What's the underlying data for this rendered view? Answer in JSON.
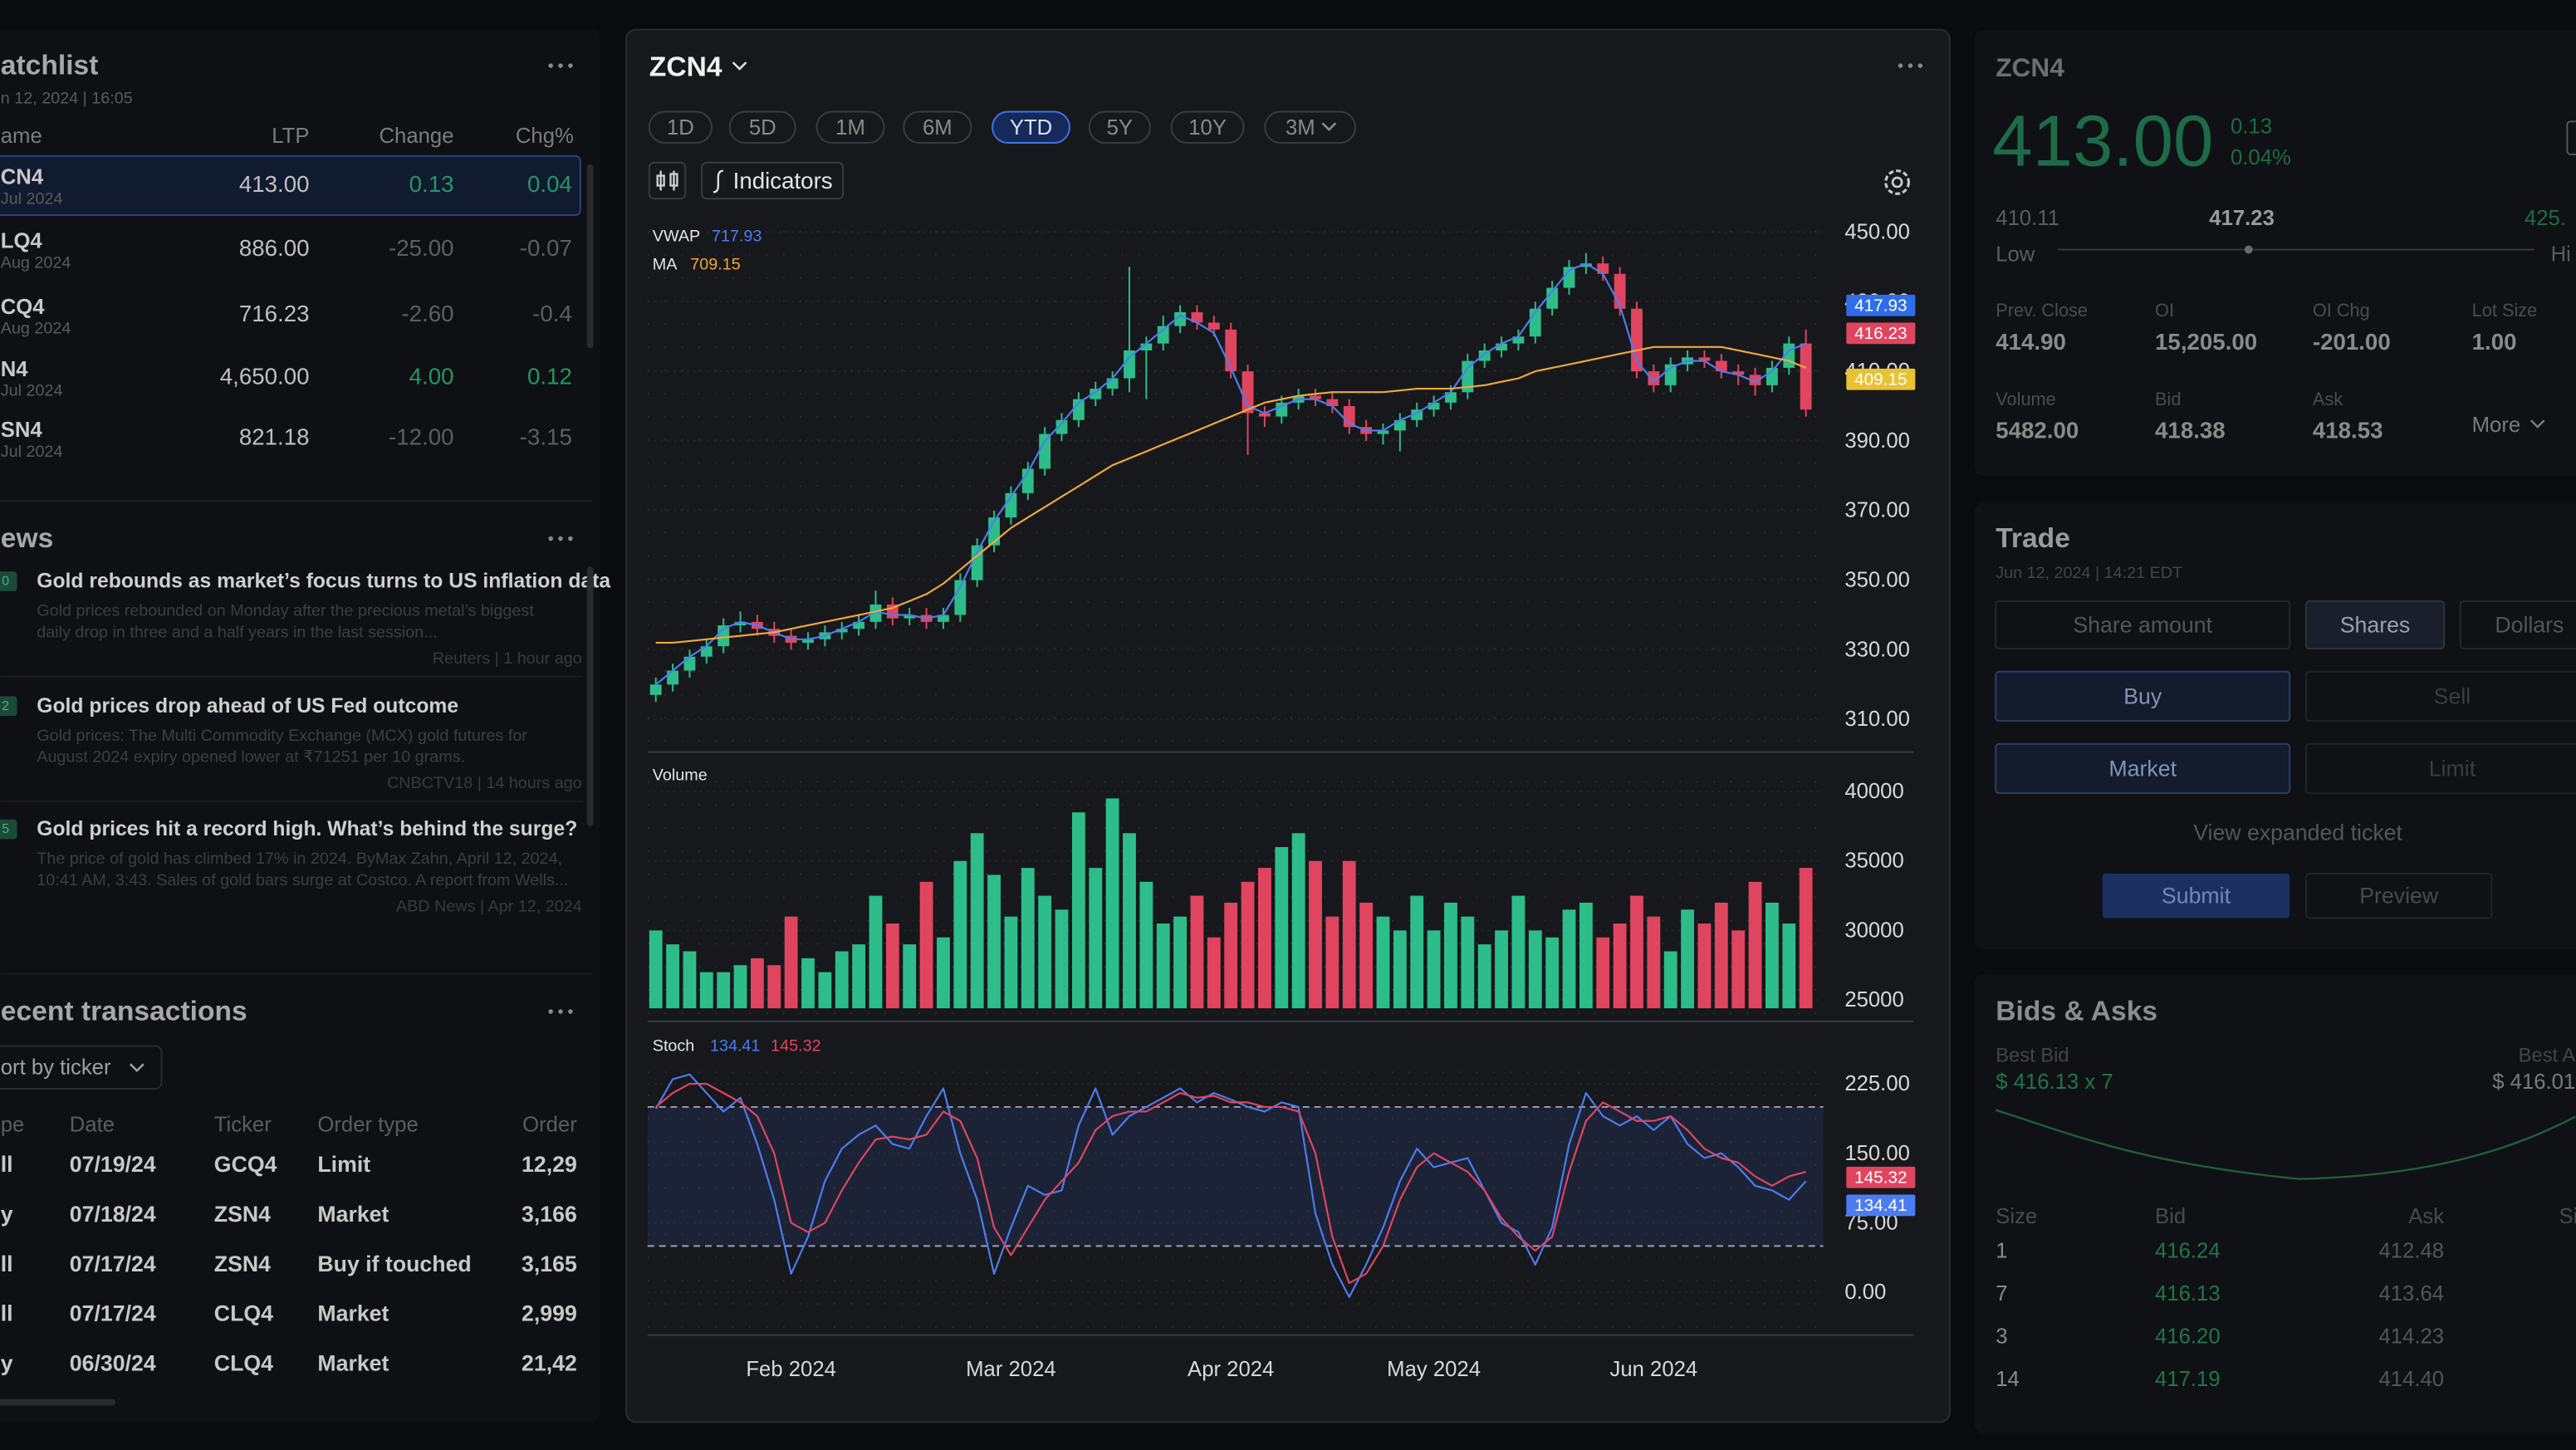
{
  "watchlist": {
    "title": "atchlist",
    "date": "n 12, 2024 | 16:05",
    "columns": [
      "ame",
      "LTP",
      "Change",
      "Chg%"
    ],
    "rows": [
      {
        "symbol": "CN4",
        "expiry": "Jul 2024",
        "ltp": "413.00",
        "change": "0.13",
        "pct": "0.04"
      },
      {
        "symbol": "LQ4",
        "expiry": "Aug 2024",
        "ltp": "886.00",
        "change": "-25.00",
        "pct": "-0.07"
      },
      {
        "symbol": "CQ4",
        "expiry": "Aug 2024",
        "ltp": "716.23",
        "change": "-2.60",
        "pct": "-0.4"
      },
      {
        "symbol": "N4",
        "expiry": "Jul 2024",
        "ltp": "4,650.00",
        "change": "4.00",
        "pct": "0.12"
      },
      {
        "symbol": "SN4",
        "expiry": "Jul 2024",
        "ltp": "821.18",
        "change": "-12.00",
        "pct": "-3.15"
      }
    ]
  },
  "news": {
    "title": "ews",
    "items": [
      {
        "tag": "0",
        "headline": "Gold rebounds as market’s focus turns to US inflation data",
        "body": [
          "Gold prices rebounded on Monday after the precious metal’s biggest",
          "daily drop in three and a half years in the last session..."
        ],
        "source": "Reuters | 1 hour ago"
      },
      {
        "tag": "2",
        "headline": "Gold prices drop ahead of US Fed outcome",
        "body": [
          "Gold prices: The Multi Commodity Exchange (MCX) gold futures for",
          "August 2024 expiry opened lower at ₹71251 per 10 grams."
        ],
        "source": "CNBCTV18 | 14 hours ago"
      },
      {
        "tag": "5",
        "headline": "Gold prices hit a record high. What’s behind the surge?",
        "body": [
          "The price of gold has climbed 17% in 2024. ByMax Zahn, April 12, 2024,",
          "10:41 AM, 3:43. Sales of gold bars surge at Costco. A report from Wells..."
        ],
        "source": "ABD News | Apr 12, 2024"
      }
    ]
  },
  "transactions": {
    "title": "ecent transactions",
    "filter": "ort by ticker",
    "columns": [
      "pe",
      "Date",
      "Ticker",
      "Order type",
      "Order"
    ],
    "rows": [
      [
        "ll",
        "07/19/24",
        "GCQ4",
        "Limit",
        "12,29"
      ],
      [
        "y",
        "07/18/24",
        "ZSN4",
        "Market",
        "3,166"
      ],
      [
        "ll",
        "07/17/24",
        "ZSN4",
        "Buy if touched",
        "3,165"
      ],
      [
        "ll",
        "07/17/24",
        "CLQ4",
        "Market",
        "2,999"
      ],
      [
        "y",
        "06/30/24",
        "CLQ4",
        "Market",
        "21,42"
      ]
    ]
  },
  "chart": {
    "symbol": "ZCN4",
    "ranges": [
      "1D",
      "5D",
      "1M",
      "6M",
      "YTD",
      "5Y",
      "10Y",
      "3M"
    ],
    "indicators": "Indicators",
    "categories": [
      null,
      null,
      null,
      null,
      null,
      null,
      null,
      null,
      "Feb 2024",
      null,
      null,
      null,
      null,
      null,
      null,
      null,
      null,
      null,
      null,
      null,
      null,
      "Mar 2024",
      null,
      null,
      null,
      null,
      null,
      null,
      null,
      null,
      null,
      null,
      null,
      null,
      "Apr 2024",
      null,
      null,
      null,
      null,
      null,
      null,
      null,
      null,
      null,
      null,
      null,
      "May 2024",
      null,
      null,
      null,
      null,
      null,
      null,
      null,
      null,
      null,
      null,
      null,
      null,
      "Jun 2024",
      null,
      null,
      null,
      null,
      null,
      null,
      null,
      null,
      null
    ],
    "price": {
      "ylim": [
        302,
        453
      ],
      "yticks": [
        {
          "value": 310,
          "label": "310.00"
        },
        {
          "value": 330,
          "label": "330.00"
        },
        {
          "value": 350,
          "label": "350.00"
        },
        {
          "value": 370,
          "label": "370.00"
        },
        {
          "value": 390,
          "label": "390.00"
        },
        {
          "value": 410,
          "label": "410.00"
        },
        {
          "value": 430,
          "label": "430.00"
        },
        {
          "value": 450,
          "label": "450.00"
        }
      ],
      "up_color": "#2dbd8b",
      "down_color": "#e0455f",
      "open": [
        317,
        320,
        324,
        328,
        331,
        337,
        338,
        336,
        334,
        332,
        333,
        335,
        336,
        338,
        343,
        339,
        340,
        338,
        340,
        350,
        360,
        368,
        375,
        382,
        392,
        396,
        402,
        405,
        408,
        416,
        418,
        423,
        427,
        424,
        422,
        410,
        398,
        397,
        401,
        403,
        402,
        400,
        394,
        392,
        393,
        396,
        399,
        401,
        404,
        413,
        416,
        418,
        420,
        428,
        434,
        440,
        441,
        438,
        428,
        410,
        406,
        412,
        414,
        413,
        410,
        409,
        406,
        411,
        418
      ],
      "high": [
        322,
        326,
        330,
        333,
        339,
        341,
        340,
        338,
        336,
        335,
        337,
        338,
        340,
        347,
        345,
        342,
        342,
        342,
        352,
        362,
        370,
        377,
        384,
        394,
        398,
        404,
        407,
        410,
        440,
        420,
        426,
        429,
        429,
        426,
        424,
        412,
        400,
        403,
        405,
        405,
        404,
        402,
        396,
        395,
        398,
        401,
        403,
        406,
        415,
        418,
        420,
        422,
        430,
        436,
        442,
        444,
        443,
        440,
        430,
        412,
        414,
        416,
        416,
        415,
        412,
        411,
        413,
        420,
        422
      ],
      "low": [
        315,
        318,
        322,
        326,
        329,
        335,
        334,
        332,
        330,
        330,
        331,
        333,
        334,
        336,
        337,
        337,
        336,
        336,
        338,
        348,
        358,
        366,
        373,
        380,
        390,
        394,
        400,
        403,
        404,
        402,
        416,
        421,
        422,
        420,
        408,
        386,
        394,
        395,
        399,
        400,
        398,
        392,
        390,
        389,
        387,
        394,
        397,
        399,
        402,
        411,
        414,
        416,
        418,
        426,
        432,
        438,
        436,
        426,
        408,
        404,
        404,
        410,
        411,
        408,
        406,
        403,
        404,
        409,
        397
      ],
      "close": [
        320,
        324,
        328,
        331,
        337,
        338,
        336,
        334,
        332,
        333,
        335,
        336,
        338,
        343,
        339,
        340,
        338,
        340,
        350,
        360,
        368,
        375,
        382,
        392,
        396,
        402,
        405,
        408,
        416,
        418,
        423,
        427,
        424,
        422,
        410,
        398,
        397,
        401,
        403,
        402,
        400,
        394,
        392,
        393,
        396,
        399,
        401,
        404,
        413,
        416,
        418,
        420,
        428,
        434,
        440,
        441,
        438,
        428,
        410,
        406,
        412,
        414,
        413,
        410,
        409,
        406,
        411,
        418,
        399
      ],
      "overlays": [
        {
          "name": "VWAP",
          "value_label": "717.93",
          "color": "#4d7cf0",
          "values": [
            320,
            324,
            328,
            331,
            336,
            338,
            337,
            335,
            333,
            333,
            334,
            336,
            338,
            341,
            340,
            340,
            339,
            340,
            348,
            358,
            367,
            374,
            381,
            390,
            395,
            401,
            404,
            408,
            414,
            418,
            422,
            426,
            424,
            421,
            411,
            400,
            398,
            400,
            402,
            402,
            400,
            395,
            393,
            393,
            396,
            398,
            401,
            404,
            411,
            415,
            418,
            420,
            427,
            433,
            439,
            441,
            438,
            429,
            413,
            407,
            411,
            413,
            413,
            410,
            409,
            407,
            410,
            416,
            418
          ]
        },
        {
          "name": "MA",
          "value_label": "709.15",
          "color": "#f0a83c",
          "values": [
            332,
            332,
            332.5,
            333,
            333.5,
            334,
            334.5,
            335,
            336,
            337,
            338,
            339,
            340,
            341,
            342,
            344,
            346,
            349,
            353,
            357,
            361,
            365,
            368,
            371,
            374,
            377,
            380,
            383,
            385,
            387,
            389,
            391,
            393,
            395,
            397,
            399,
            401,
            402,
            403,
            403.5,
            404,
            404,
            404,
            404,
            404.5,
            405,
            405,
            405,
            405.5,
            406,
            407,
            408,
            410,
            411,
            412,
            413,
            414,
            415,
            416,
            417,
            417,
            417,
            417,
            417,
            416,
            415,
            414,
            413,
            411
          ]
        }
      ],
      "badges": [
        {
          "label": "417.93",
          "color": "#2f6ee8"
        },
        {
          "label": "416.23",
          "color": "#e0455f"
        },
        {
          "label": "409.15",
          "color": "#e8c235"
        }
      ]
    },
    "volume": {
      "name": "Volume",
      "ylim": [
        24400,
        40000
      ],
      "yticks": [
        25000,
        30000,
        35000,
        40000
      ],
      "values": [
        30000,
        29000,
        28500,
        27000,
        27000,
        27500,
        28000,
        27500,
        31000,
        28000,
        27000,
        28500,
        29000,
        32500,
        30500,
        29000,
        33500,
        29500,
        35000,
        37000,
        34000,
        31000,
        34500,
        32500,
        31500,
        38500,
        34500,
        39500,
        37000,
        33500,
        30500,
        31000,
        32500,
        29500,
        32000,
        33500,
        34500,
        36000,
        37000,
        35000,
        31000,
        35000,
        32000,
        31000,
        30000,
        32500,
        30000,
        32000,
        31000,
        29000,
        30000,
        32500,
        30000,
        29500,
        31500,
        32000,
        29500,
        30500,
        32500,
        31000,
        28500,
        31500,
        30500,
        32000,
        30000,
        33500,
        32000,
        30500,
        34500
      ]
    },
    "stoch": {
      "name": "Stoch",
      "ylim": [
        -40,
        248
      ],
      "bands": [
        50,
        200
      ],
      "yticks": [
        {
          "value": 0,
          "label": "0.00"
        },
        {
          "value": 75,
          "label": "75.00"
        },
        {
          "value": 150,
          "label": "150.00"
        },
        {
          "value": 225,
          "label": "225.00"
        }
      ],
      "series": [
        {
          "value_label": "134.41",
          "color": "#4d7cf0",
          "values": [
            198,
            230,
            235,
            215,
            195,
            210,
            160,
            100,
            20,
            60,
            120,
            155,
            170,
            180,
            160,
            155,
            190,
            220,
            150,
            100,
            20,
            70,
            115,
            105,
            110,
            180,
            220,
            170,
            190,
            200,
            210,
            220,
            205,
            215,
            208,
            200,
            195,
            205,
            200,
            85,
            30,
            -5,
            30,
            70,
            120,
            155,
            135,
            140,
            145,
            110,
            75,
            65,
            30,
            70,
            160,
            215,
            190,
            180,
            190,
            175,
            190,
            160,
            145,
            150,
            135,
            115,
            110,
            100,
            120
          ]
        },
        {
          "value_label": "145.32",
          "color": "#e0455f",
          "values": [
            200,
            215,
            225,
            225,
            215,
            205,
            190,
            150,
            75,
            65,
            75,
            110,
            140,
            165,
            168,
            165,
            170,
            195,
            185,
            145,
            70,
            40,
            70,
            100,
            120,
            140,
            175,
            190,
            195,
            195,
            205,
            215,
            210,
            212,
            205,
            205,
            200,
            200,
            195,
            150,
            60,
            10,
            20,
            50,
            100,
            135,
            150,
            140,
            130,
            110,
            80,
            60,
            45,
            60,
            130,
            185,
            205,
            195,
            185,
            185,
            190,
            175,
            155,
            145,
            140,
            125,
            115,
            125,
            130
          ]
        }
      ]
    }
  },
  "quote": {
    "symbol": "ZCN4",
    "price": "413.00",
    "change": "0.13",
    "pct": "0.04%",
    "low": "410.11",
    "mid": "417.23",
    "high": "425.",
    "low_label": "Low",
    "high_label": "Hi",
    "stats": [
      {
        "label": "Prev. Close",
        "value": "414.90"
      },
      {
        "label": "OI",
        "value": "15,205.00"
      },
      {
        "label": "OI Chg",
        "value": "-201.00"
      },
      {
        "label": "Lot Size",
        "value": "1.00"
      },
      {
        "label": "Volume",
        "value": "5482.00"
      },
      {
        "label": "Bid",
        "value": "418.38"
      },
      {
        "label": "Ask",
        "value": "418.53"
      }
    ],
    "more": "More"
  },
  "trade": {
    "title": "Trade",
    "date": "Jun 12, 2024 | 14:21 EDT",
    "amount": [
      "Share amount",
      "Shares",
      "Dollars"
    ],
    "side": [
      "Buy",
      "Sell"
    ],
    "order": [
      "Market",
      "Limit"
    ],
    "expand": "View expanded ticket",
    "submit": "Submit",
    "preview": "Preview"
  },
  "bids": {
    "title": "Bids & Asks",
    "best_bid_label": "Best Bid",
    "best_bid": "$ 416.13 x 7",
    "best_ask_label": "Best A",
    "best_ask": "$ 416.01",
    "columns": [
      "Size",
      "Bid",
      "Ask",
      "Si"
    ],
    "rows": [
      [
        "1",
        "416.24",
        "412.48"
      ],
      [
        "7",
        "416.13",
        "413.64"
      ],
      [
        "3",
        "416.20",
        "414.23"
      ],
      [
        "14",
        "417.19",
        "414.40"
      ]
    ]
  }
}
